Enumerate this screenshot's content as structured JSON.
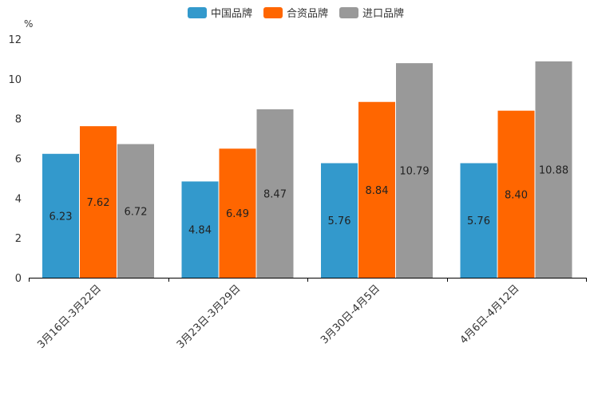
{
  "chart_data": {
    "type": "bar",
    "title": "",
    "xlabel": "",
    "ylabel": "%",
    "ylim": [
      0,
      12
    ],
    "yticks": [
      0,
      2,
      4,
      6,
      8,
      10,
      12
    ],
    "grid": false,
    "legend_position": "top-center",
    "categories": [
      "3月16日-3月22日",
      "3月23日-3月29日",
      "3月30日-4月5日",
      "4月6日-4月12日"
    ],
    "series": [
      {
        "name": "中国品牌",
        "color": "#3399cc",
        "values": [
          6.23,
          4.84,
          5.76,
          5.76
        ],
        "labels": [
          "6.23",
          "4.84",
          "5.76",
          "5.76"
        ]
      },
      {
        "name": "合资品牌",
        "color": "#ff6600",
        "values": [
          7.62,
          6.49,
          8.84,
          8.4
        ],
        "labels": [
          "7.62",
          "6.49",
          "8.84",
          "8.40"
        ]
      },
      {
        "name": "进口品牌",
        "color": "#999999",
        "values": [
          6.72,
          8.47,
          10.79,
          10.88
        ],
        "labels": [
          "6.72",
          "8.47",
          "10.79",
          "10.88"
        ]
      }
    ]
  }
}
